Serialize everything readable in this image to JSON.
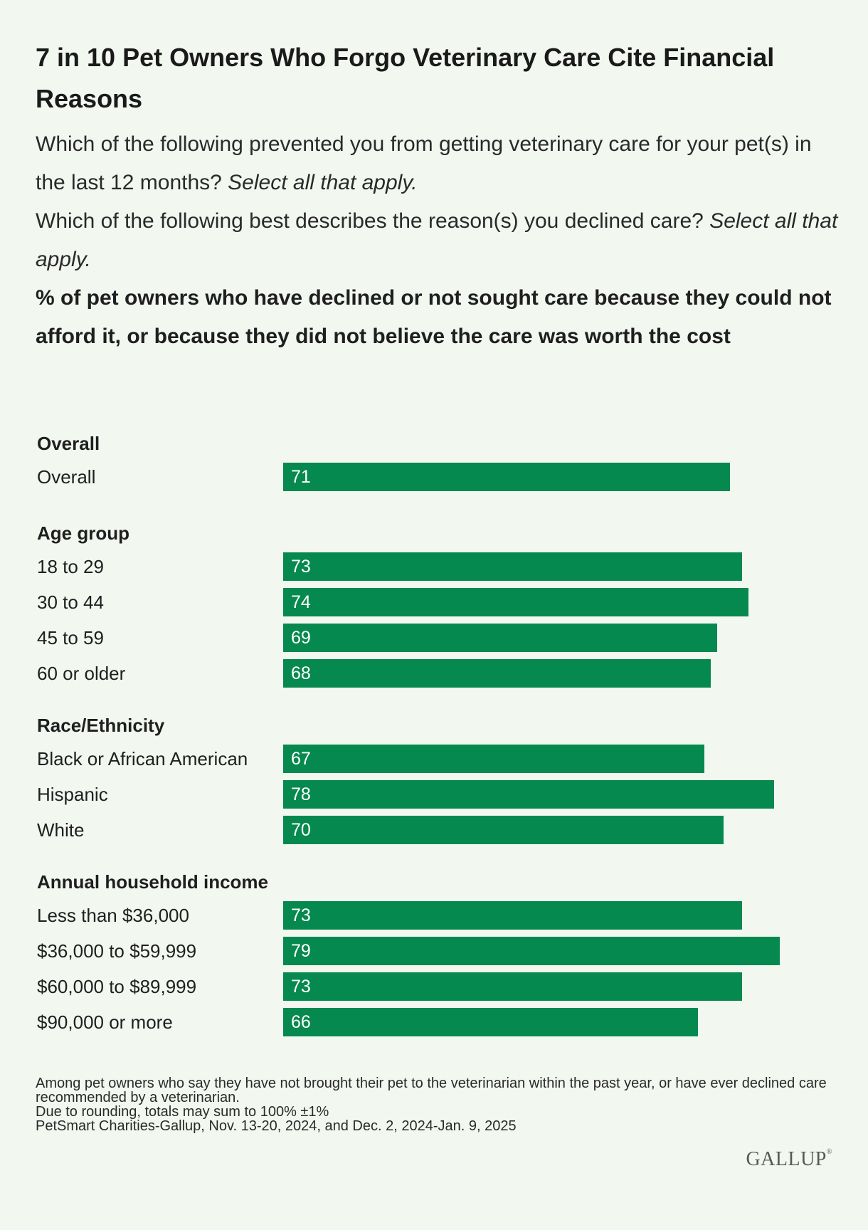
{
  "title": "7 in 10 Pet Owners Who Forgo Veterinary Care Cite Financial Reasons",
  "question1": {
    "text": "Which of the following prevented you from getting veterinary care for your pet(s) in the last 12 months?",
    "italic": "Select all that apply."
  },
  "question2": {
    "text": "Which of the following best describes the reason(s) you declined care?",
    "italic": "Select all that apply."
  },
  "subtitle": "% of pet owners who have declined or not sought care because they could not afford it, or because they did not believe the care was worth the cost",
  "colors": {
    "bar": "#06894e",
    "background": "#f2f7f0"
  },
  "chart_data": {
    "type": "bar",
    "orientation": "horizontal",
    "groups": [
      {
        "name": "Overall",
        "categories": [
          "Overall"
        ],
        "values": [
          71
        ]
      },
      {
        "name": "Age group",
        "categories": [
          "18 to 29",
          "30 to 44",
          "45 to 59",
          "60 or older"
        ],
        "values": [
          73,
          74,
          69,
          68
        ]
      },
      {
        "name": "Race/Ethnicity",
        "categories": [
          "Black or African American",
          "Hispanic",
          "White"
        ],
        "values": [
          67,
          78,
          70
        ]
      },
      {
        "name": "Annual household income",
        "categories": [
          "Less than $36,000",
          "$36,000 to $59,999",
          "$60,000 to $89,999",
          "$90,000 or more"
        ],
        "values": [
          73,
          79,
          73,
          66
        ]
      }
    ]
  },
  "footnotes": [
    "Among pet owners who say they have not brought their pet to the veterinarian within the past year, or have ever declined care recommended by a veterinarian.",
    "Due to rounding, totals may sum to 100% ±1%",
    "PetSmart Charities-Gallup, Nov. 13-20, 2024, and Dec. 2, 2024-Jan. 9, 2025"
  ],
  "logo": "GALLUP"
}
